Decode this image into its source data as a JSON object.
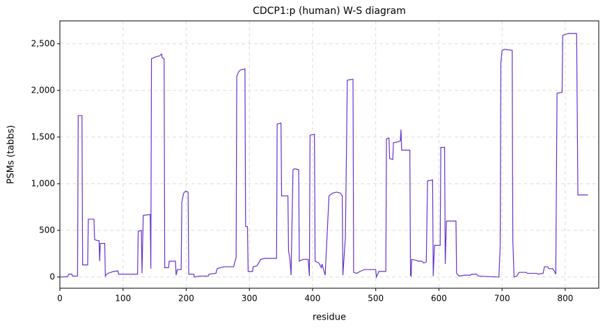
{
  "chart_data": {
    "type": "line",
    "title": "CDCP1:p (human) W-S diagram",
    "x_label": "residue",
    "y_label": "PSMs (tabbs)",
    "color": "#6633cc",
    "grid": true,
    "xlim": [
      0,
      853
    ],
    "ylim": [
      -120,
      2745
    ],
    "xticks": [
      0,
      100,
      200,
      300,
      400,
      500,
      600,
      700,
      800
    ],
    "yticks": [
      0,
      500,
      {
        "value": 1000,
        "label": "1,000"
      },
      {
        "value": 1500,
        "label": "1,500"
      },
      {
        "value": 2000,
        "label": "2,000"
      },
      {
        "value": 2500,
        "label": "2,500"
      }
    ],
    "x": [
      0,
      12,
      14,
      19,
      20,
      28,
      29,
      35,
      36,
      44,
      45,
      54,
      55,
      60,
      62,
      63,
      64,
      71,
      72,
      74,
      78,
      85,
      92,
      93,
      110,
      123,
      124,
      129,
      130,
      132,
      143,
      144,
      145,
      152,
      158,
      161,
      162,
      165,
      166,
      172,
      173,
      183,
      184,
      186,
      192,
      193,
      196,
      199,
      203,
      204,
      212,
      213,
      222,
      235,
      236,
      247,
      249,
      254,
      260,
      275,
      279,
      280,
      283,
      286,
      293,
      294,
      297,
      298,
      305,
      306,
      312,
      318,
      325,
      343,
      344,
      350,
      351,
      361,
      362,
      364,
      366,
      369,
      372,
      378,
      379,
      385,
      393,
      395,
      396,
      403,
      404,
      410,
      414,
      415,
      420,
      426,
      432,
      438,
      444,
      447,
      448,
      452,
      455,
      464,
      465,
      470,
      475,
      482,
      500,
      501,
      505,
      516,
      517,
      521,
      522,
      527,
      528,
      536,
      539,
      540,
      541,
      554,
      555,
      556,
      557,
      563,
      568,
      573,
      576,
      580,
      582,
      590,
      591,
      593,
      602,
      603,
      609,
      610,
      612,
      627,
      628,
      632,
      640,
      650,
      652,
      660,
      662,
      695,
      697,
      698,
      700,
      704,
      716,
      717,
      719,
      723,
      727,
      738,
      740,
      755,
      757,
      765,
      767,
      772,
      774,
      780,
      783,
      785,
      787,
      795,
      796,
      800,
      805,
      818,
      820,
      836
    ],
    "values": [
      0,
      3,
      30,
      30,
      10,
      10,
      1730,
      1730,
      130,
      130,
      620,
      620,
      400,
      390,
      390,
      170,
      360,
      360,
      10,
      30,
      45,
      60,
      65,
      30,
      30,
      30,
      490,
      500,
      40,
      660,
      670,
      90,
      2340,
      2360,
      2370,
      2390,
      2350,
      2340,
      100,
      100,
      170,
      170,
      20,
      80,
      80,
      800,
      900,
      920,
      910,
      30,
      30,
      0,
      10,
      10,
      30,
      40,
      90,
      100,
      110,
      110,
      210,
      2150,
      2200,
      2220,
      2230,
      540,
      540,
      60,
      60,
      110,
      120,
      190,
      200,
      200,
      1640,
      1650,
      870,
      870,
      280,
      200,
      20,
      1150,
      1160,
      1150,
      170,
      190,
      190,
      10,
      1520,
      1530,
      170,
      150,
      100,
      140,
      20,
      870,
      900,
      910,
      900,
      870,
      20,
      430,
      2110,
      2120,
      50,
      40,
      60,
      80,
      80,
      0,
      60,
      60,
      1480,
      1490,
      1270,
      1260,
      1440,
      1450,
      1460,
      1580,
      1360,
      1360,
      20,
      10,
      190,
      180,
      170,
      170,
      150,
      160,
      1030,
      1040,
      10,
      340,
      340,
      1390,
      1390,
      140,
      600,
      600,
      40,
      10,
      20,
      20,
      30,
      30,
      10,
      0,
      330,
      2290,
      2430,
      2440,
      2430,
      390,
      0,
      10,
      50,
      50,
      40,
      40,
      30,
      40,
      110,
      110,
      90,
      90,
      60,
      30,
      1970,
      1980,
      2590,
      2600,
      2610,
      2610,
      880,
      880
    ]
  }
}
